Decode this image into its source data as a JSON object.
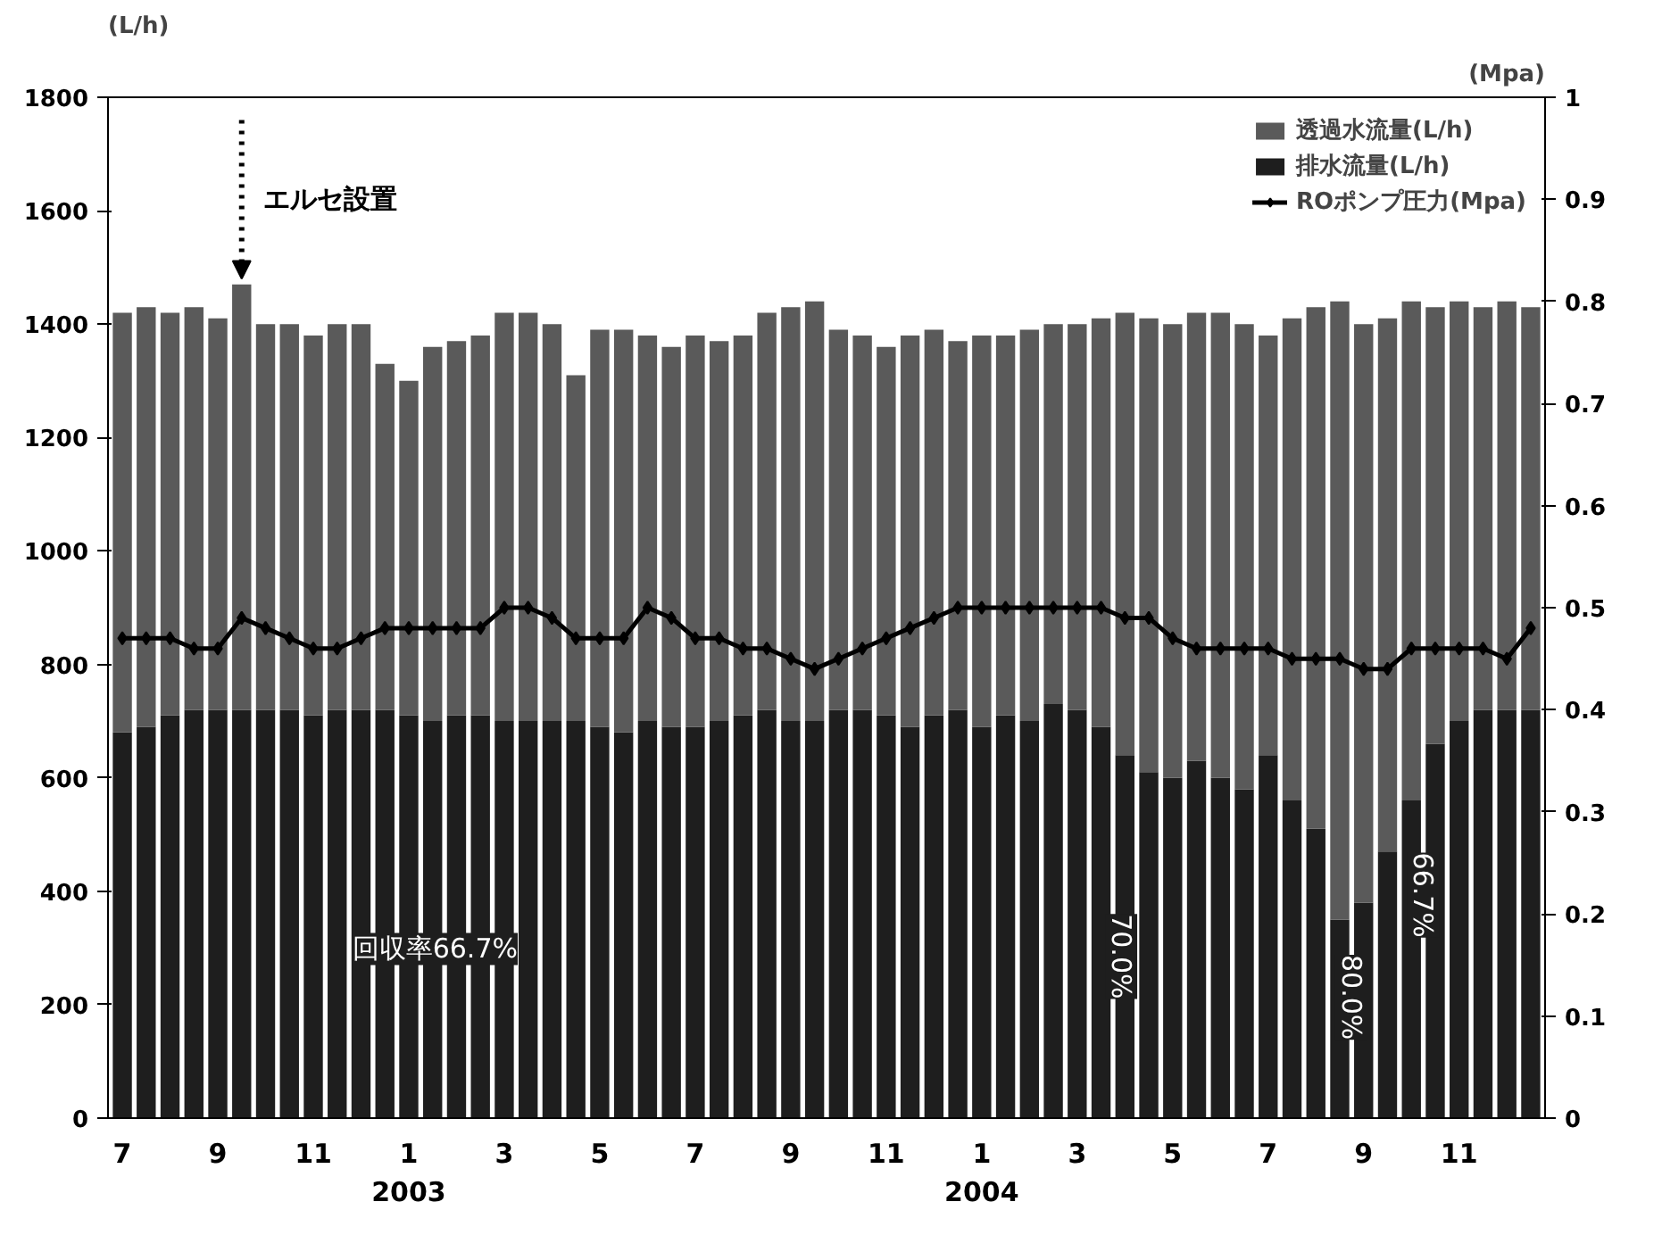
{
  "chart_data": {
    "type": "bar",
    "stacked": true,
    "categories": [
      "7",
      null,
      null,
      null,
      "9",
      null,
      null,
      null,
      "11",
      null,
      null,
      null,
      "1\n2003",
      null,
      null,
      null,
      "3",
      null,
      null,
      null,
      "5",
      null,
      null,
      null,
      "7",
      null,
      null,
      null,
      "9",
      null,
      null,
      null,
      "11",
      null,
      null,
      null,
      "1\n2004",
      null,
      null,
      null,
      "3",
      null,
      null,
      null,
      "5",
      null,
      null,
      null,
      "7",
      null,
      null,
      null,
      "9",
      null,
      null,
      null,
      "11",
      null,
      null,
      null
    ],
    "series": [
      {
        "name": "排水流量(L/h)",
        "color": "#1e1e1e",
        "values": [
          680,
          690,
          710,
          720,
          720,
          720,
          720,
          720,
          710,
          720,
          720,
          720,
          710,
          700,
          710,
          710,
          700,
          700,
          700,
          700,
          690,
          680,
          700,
          690,
          690,
          700,
          710,
          720,
          700,
          700,
          720,
          720,
          710,
          690,
          710,
          720,
          690,
          710,
          700,
          730,
          720,
          690,
          640,
          610,
          600,
          630,
          600,
          580,
          640,
          560,
          510,
          350,
          380,
          470,
          560,
          660,
          700,
          720,
          720,
          720
        ]
      },
      {
        "name": "透過水流量(L/h)",
        "color": "#5a5a5a",
        "values": [
          740,
          740,
          710,
          710,
          690,
          750,
          680,
          680,
          670,
          680,
          680,
          610,
          590,
          660,
          660,
          670,
          720,
          720,
          700,
          610,
          700,
          710,
          680,
          670,
          690,
          670,
          670,
          700,
          730,
          740,
          670,
          660,
          650,
          690,
          680,
          650,
          690,
          670,
          690,
          670,
          680,
          720,
          780,
          800,
          800,
          790,
          820,
          820,
          740,
          850,
          920,
          1090,
          1020,
          940,
          880,
          770,
          740,
          710,
          720,
          710
        ]
      },
      {
        "name": "ROポンプ圧力(Mpa)",
        "type": "line",
        "axis": "y2",
        "color": "#000000",
        "values": [
          0.47,
          0.47,
          0.47,
          0.46,
          0.46,
          0.49,
          0.48,
          0.47,
          0.46,
          0.46,
          0.47,
          0.48,
          0.48,
          0.48,
          0.48,
          0.48,
          0.5,
          0.5,
          0.49,
          0.47,
          0.47,
          0.47,
          0.5,
          0.49,
          0.47,
          0.47,
          0.46,
          0.46,
          0.45,
          0.44,
          0.45,
          0.46,
          0.47,
          0.48,
          0.49,
          0.5,
          0.5,
          0.5,
          0.5,
          0.5,
          0.5,
          0.5,
          0.49,
          0.49,
          0.47,
          0.46,
          0.46,
          0.46,
          0.46,
          0.45,
          0.45,
          0.45,
          0.44,
          0.44,
          0.46,
          0.46,
          0.46,
          0.46,
          0.45,
          0.48
        ]
      }
    ],
    "marker": "diamond",
    "line_style": "solid",
    "ylabel": "(L/h)",
    "y2label": "(Mpa)",
    "ylim": [
      0,
      1800
    ],
    "yticks": [
      0,
      200,
      400,
      600,
      800,
      1000,
      1200,
      1400,
      1600,
      1800
    ],
    "y2lim": [
      0,
      1
    ],
    "y2ticks": [
      0,
      0.1,
      0.2,
      0.3,
      0.4,
      0.5,
      0.6,
      0.7,
      0.8,
      0.9,
      1
    ],
    "grid": false,
    "legend": "top right",
    "annotations": [
      "エルセ設置",
      "回収率66.7%",
      "70.0%",
      "80.0%",
      "66.7%"
    ]
  }
}
